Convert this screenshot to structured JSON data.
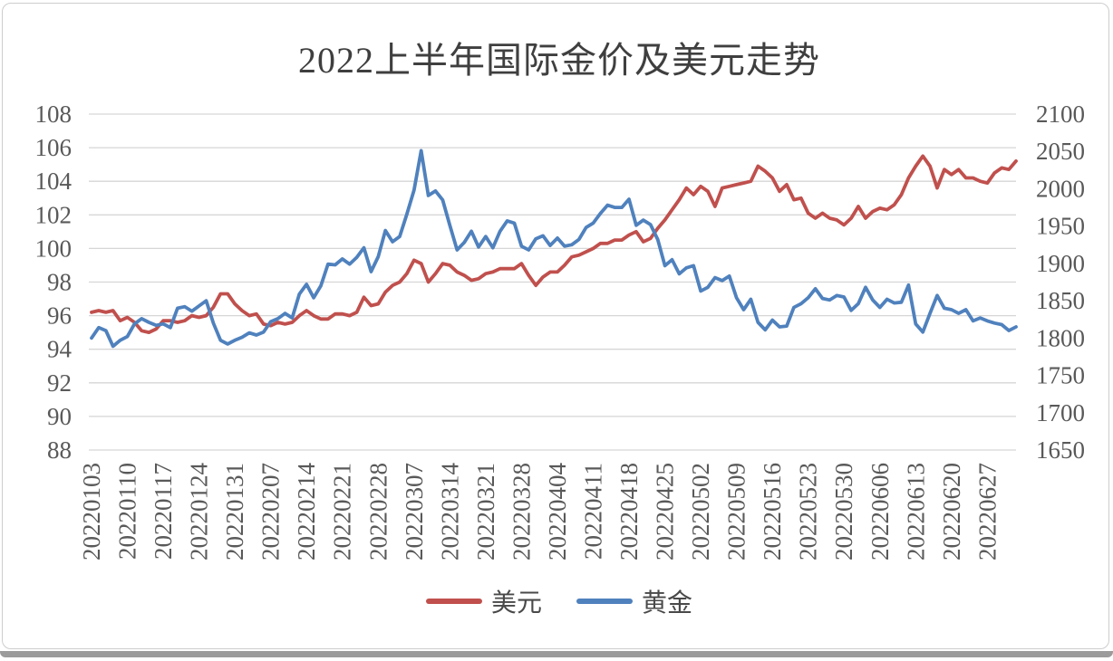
{
  "chart": {
    "title": "2022上半年国际金价及美元走势",
    "legend": [
      {
        "name": "美元",
        "color": "#C0504D"
      },
      {
        "name": "黄金",
        "color": "#4F81BD"
      }
    ]
  },
  "chart_data": {
    "type": "line",
    "title": "2022上半年国际金价及美元走势",
    "grid": true,
    "legend_position": "bottom",
    "x_labels": [
      "20220103",
      "20220110",
      "20220117",
      "20220124",
      "20220131",
      "20220207",
      "20220214",
      "20220221",
      "20220228",
      "20220307",
      "20220314",
      "20220321",
      "20220328",
      "20220404",
      "20220411",
      "20220418",
      "20220425",
      "20220502",
      "20220509",
      "20220516",
      "20220523",
      "20220530",
      "20220606",
      "20220613",
      "20220620",
      "20220627"
    ],
    "points_per_label": 5,
    "left_axis": {
      "min": 88,
      "max": 108,
      "step": 2,
      "ticks": [
        88,
        90,
        92,
        94,
        96,
        98,
        100,
        102,
        104,
        106,
        108
      ]
    },
    "right_axis": {
      "min": 1650,
      "max": 2100,
      "step": 50,
      "ticks": [
        1650,
        1700,
        1750,
        1800,
        1850,
        1900,
        1950,
        2000,
        2050,
        2100
      ]
    },
    "series": [
      {
        "name": "美元",
        "axis": "left",
        "color": "#C0504D",
        "values": [
          96.2,
          96.3,
          96.2,
          96.3,
          95.7,
          95.9,
          95.6,
          95.1,
          95.0,
          95.2,
          95.7,
          95.7,
          95.6,
          95.7,
          96.0,
          95.9,
          96.0,
          96.5,
          97.3,
          97.3,
          96.7,
          96.3,
          96.0,
          96.1,
          95.5,
          95.4,
          95.6,
          95.5,
          95.6,
          96.0,
          96.3,
          96.0,
          95.8,
          95.8,
          96.1,
          96.1,
          96.0,
          96.2,
          97.1,
          96.6,
          96.7,
          97.4,
          97.8,
          98.0,
          98.5,
          99.3,
          99.1,
          98.0,
          98.5,
          99.1,
          99.0,
          98.6,
          98.4,
          98.1,
          98.2,
          98.5,
          98.6,
          98.8,
          98.8,
          98.8,
          99.1,
          98.4,
          97.8,
          98.3,
          98.6,
          98.6,
          99.0,
          99.5,
          99.6,
          99.8,
          100.0,
          100.3,
          100.3,
          100.5,
          100.5,
          100.8,
          101.0,
          100.4,
          100.6,
          101.2,
          101.7,
          102.3,
          102.9,
          103.6,
          103.2,
          103.7,
          103.4,
          102.5,
          103.6,
          103.7,
          103.8,
          103.9,
          104.0,
          104.9,
          104.6,
          104.2,
          103.4,
          103.8,
          102.9,
          103.0,
          102.1,
          101.8,
          102.1,
          101.8,
          101.7,
          101.4,
          101.8,
          102.5,
          101.8,
          102.2,
          102.4,
          102.3,
          102.6,
          103.2,
          104.2,
          104.9,
          105.5,
          104.9,
          103.6,
          104.7,
          104.4,
          104.7,
          104.2,
          104.2,
          104.0,
          103.9,
          104.5,
          104.8,
          104.7,
          105.2
        ]
      },
      {
        "name": "黄金",
        "axis": "right",
        "color": "#4F81BD",
        "values": [
          1800,
          1814,
          1810,
          1789,
          1797,
          1802,
          1819,
          1826,
          1821,
          1817,
          1819,
          1814,
          1840,
          1842,
          1836,
          1843,
          1850,
          1820,
          1797,
          1792,
          1797,
          1801,
          1807,
          1804,
          1808,
          1822,
          1826,
          1833,
          1827,
          1859,
          1872,
          1854,
          1870,
          1899,
          1898,
          1906,
          1899,
          1908,
          1921,
          1889,
          1909,
          1944,
          1929,
          1936,
          1966,
          1998,
          2051,
          1991,
          1997,
          1985,
          1951,
          1918,
          1928,
          1943,
          1922,
          1936,
          1921,
          1943,
          1957,
          1954,
          1923,
          1918,
          1933,
          1937,
          1924,
          1934,
          1923,
          1925,
          1932,
          1948,
          1954,
          1967,
          1978,
          1975,
          1975,
          1986,
          1951,
          1958,
          1952,
          1932,
          1897,
          1905,
          1886,
          1894,
          1897,
          1863,
          1868,
          1881,
          1877,
          1883,
          1854,
          1838,
          1852,
          1821,
          1811,
          1824,
          1815,
          1816,
          1841,
          1846,
          1854,
          1866,
          1853,
          1851,
          1857,
          1855,
          1837,
          1846,
          1868,
          1851,
          1841,
          1852,
          1847,
          1848,
          1871,
          1819,
          1808,
          1833,
          1857,
          1840,
          1838,
          1833,
          1838,
          1823,
          1827,
          1823,
          1820,
          1818,
          1810,
          1815
        ]
      }
    ]
  }
}
